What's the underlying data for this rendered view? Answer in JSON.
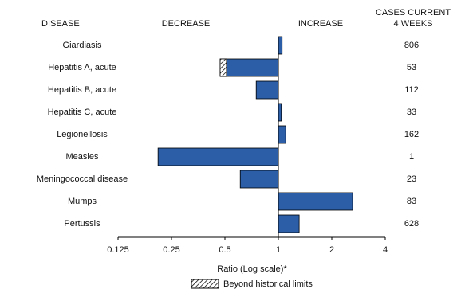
{
  "chart_data": {
    "type": "bar",
    "orientation": "horizontal",
    "headers": {
      "disease": "DISEASE",
      "decrease": "DECREASE",
      "increase": "INCREASE",
      "cases": [
        "CASES CURRENT",
        "4 WEEKS"
      ]
    },
    "categories": [
      "Giardiasis",
      "Hepatitis A, acute",
      "Hepatitis B, acute",
      "Hepatitis C, acute",
      "Legionellosis",
      "Measles",
      "Meningococcal disease",
      "Mumps",
      "Pertussis"
    ],
    "values": [
      1.05,
      0.47,
      0.75,
      1.04,
      1.1,
      0.21,
      0.61,
      2.62,
      1.31
    ],
    "historical_limits": [
      null,
      0.51,
      null,
      null,
      null,
      null,
      null,
      null,
      null
    ],
    "cases": [
      806,
      53,
      112,
      33,
      162,
      1,
      23,
      83,
      628
    ],
    "color": "#2b5ea7",
    "xlim": [
      0.125,
      4
    ],
    "xticks": [
      0.125,
      0.25,
      0.5,
      1,
      2,
      4
    ],
    "xscale": "log",
    "baseline": 1,
    "xlabel": "Ratio (Log scale)*",
    "legend": "Beyond historical limits"
  }
}
